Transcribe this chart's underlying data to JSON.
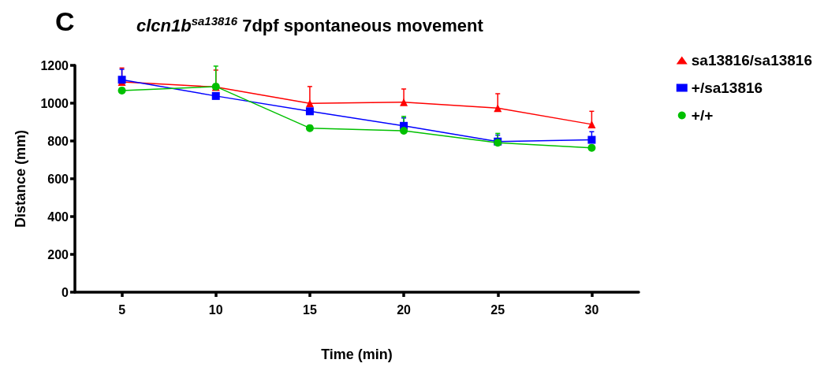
{
  "chart_data": {
    "type": "line",
    "title": "clcn1b$^{sa13816}$ 7dpf spontaneous movement",
    "xlabel": "Time (min)",
    "ylabel": "Distance (mm)",
    "annotations": [
      "C"
    ],
    "x": [
      5,
      10,
      15,
      20,
      25,
      30
    ],
    "xlim": [
      2.5,
      32.5
    ],
    "xticks": [
      5,
      10,
      15,
      20,
      25,
      30
    ],
    "ylim": [
      0,
      1200
    ],
    "yticks": [
      0,
      200,
      400,
      600,
      800,
      {
        "value": 1000,
        "label": "1000"
      },
      {
        "value": 1200,
        "label": "1200"
      }
    ],
    "grid": false,
    "legend": "top right",
    "line_style": "solid",
    "series": [
      {
        "name": "sa13816/sa13816",
        "color": "#ff0000",
        "marker": "triangle",
        "values": [
          1113,
          1085,
          999,
          1005,
          974,
          888
        ],
        "errors": [
          [
            1113,
            1186
          ],
          [
            1085,
            1175
          ],
          [
            999,
            1088
          ],
          [
            1005,
            1075
          ],
          [
            974,
            1050
          ],
          [
            888,
            957
          ]
        ]
      },
      {
        "name": "+/sa13816",
        "color": "#0000ff",
        "marker": "square",
        "values": [
          1124,
          1038,
          957,
          880,
          797,
          806
        ],
        "errors": [
          [
            1124,
            1179
          ],
          null,
          null,
          [
            880,
            922
          ],
          [
            797,
            831
          ],
          [
            806,
            849
          ]
        ]
      },
      {
        "name": "+/+",
        "color": "#00c000",
        "marker": "circle",
        "values": [
          1067,
          1088,
          868,
          854,
          791,
          764
        ],
        "errors": [
          null,
          [
            1088,
            1196
          ],
          null,
          [
            854,
            930
          ],
          [
            791,
            840
          ],
          null
        ]
      }
    ]
  }
}
